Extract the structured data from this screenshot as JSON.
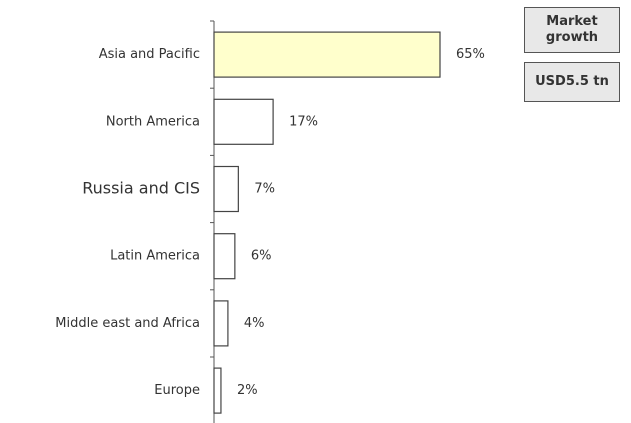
{
  "chart_data": {
    "type": "bar",
    "orientation": "horizontal",
    "categories": [
      "Asia and Pacific",
      "North America",
      "Russia and CIS",
      "Latin America",
      "Middle east and Africa",
      "Europe"
    ],
    "values": [
      65,
      17,
      7,
      6,
      4,
      2
    ],
    "value_labels": [
      "65%",
      "17%",
      "7%",
      "6%",
      "4%",
      "2%"
    ],
    "colors": [
      "#ffffcc",
      "#ffffff",
      "#ffffff",
      "#ffffff",
      "#ffffff",
      "#ffffff"
    ],
    "annotations": [
      "Market growth",
      "USD5.5 tn"
    ]
  }
}
